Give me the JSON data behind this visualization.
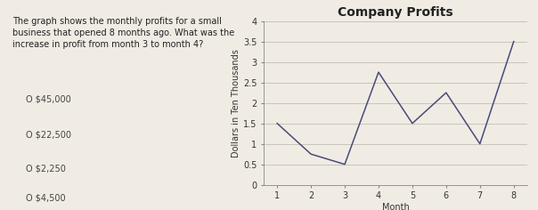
{
  "title": "Company Profits",
  "xlabel": "Month",
  "ylabel": "Dollars in Ten Thousands",
  "months": [
    1,
    2,
    3,
    4,
    5,
    6,
    7,
    8
  ],
  "values": [
    1.5,
    0.75,
    0.5,
    2.75,
    1.5,
    2.25,
    1.0,
    3.5
  ],
  "ylim": [
    0,
    4
  ],
  "yticks": [
    0,
    0.5,
    1.0,
    1.5,
    2.0,
    2.5,
    3.0,
    3.5,
    4.0
  ],
  "xticks": [
    1,
    2,
    3,
    4,
    5,
    6,
    7,
    8
  ],
  "line_color": "#4a4a7a",
  "bg_color": "#f0ece4",
  "grid_color": "#c8c4bc",
  "title_fontsize": 10,
  "label_fontsize": 7,
  "tick_fontsize": 7,
  "question_text": "The graph shows the monthly profits for a small\nbusiness that opened 8 months ago. What was the\nincrease in profit from month 3 to month 4?",
  "answer1": "O $45,000",
  "answer2": "O $22,500",
  "answer3": "O $2,250",
  "answer4": "O $4,500",
  "question_fontsize": 7,
  "answer_fontsize": 7
}
